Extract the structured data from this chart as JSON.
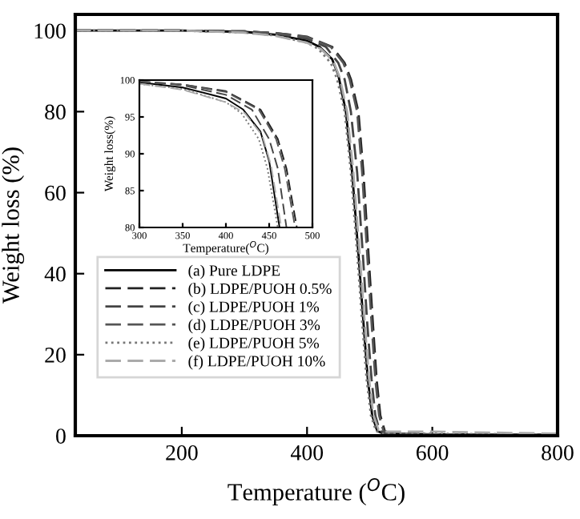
{
  "chart_data": [
    {
      "type": "line",
      "xlabel": "Temperature ($^{O}$C)",
      "ylabel": "Weight loss (%)",
      "xlim": [
        30,
        800
      ],
      "ylim": [
        0,
        104
      ],
      "xticks": [
        200,
        400,
        600,
        800
      ],
      "yticks": [
        0,
        20,
        40,
        60,
        80,
        100
      ],
      "grid": false,
      "legend": "bottom left",
      "series": [
        {
          "name": "(a) Pure LDPE",
          "color": "#000000",
          "line_style": "solid",
          "x": [
            30,
            200,
            300,
            350,
            400,
            420,
            440,
            450,
            462,
            472,
            482,
            490,
            497,
            504,
            512,
            522,
            600,
            800
          ],
          "values": [
            100,
            100,
            99.7,
            99,
            97.5,
            96,
            93,
            89,
            80,
            65,
            45,
            28,
            14,
            5,
            1.2,
            0.5,
            0.3,
            0.2
          ]
        },
        {
          "name": "(b) LDPE/PUOH 0.5%",
          "color": "#222222",
          "line_style": "dashed",
          "x": [
            30,
            200,
            300,
            350,
            400,
            440,
            460,
            470,
            482,
            490,
            498,
            505,
            511,
            517,
            524,
            532,
            600,
            800
          ],
          "values": [
            100,
            100,
            99.8,
            99.4,
            98.5,
            96,
            92,
            88,
            80,
            65,
            45,
            28,
            14,
            5,
            1.2,
            0.5,
            0.3,
            0.2
          ]
        },
        {
          "name": "(c) LDPE/PUOH 1%",
          "color": "#444444",
          "line_style": "dashed",
          "x": [
            30,
            200,
            300,
            350,
            400,
            430,
            450,
            460,
            470,
            480,
            489,
            496,
            503,
            509,
            516,
            526,
            600,
            800
          ],
          "values": [
            100,
            100,
            99.8,
            99.3,
            98,
            96,
            92,
            88,
            80,
            65,
            45,
            28,
            14,
            5,
            1.2,
            0.5,
            0.3,
            0.2
          ]
        },
        {
          "name": "(d) LDPE/PUOH 3%",
          "color": "#555555",
          "line_style": "dashed",
          "x": [
            30,
            200,
            300,
            350,
            400,
            438,
            458,
            468,
            480,
            488,
            496,
            503,
            509,
            515,
            522,
            530,
            600,
            800
          ],
          "values": [
            100,
            100,
            99.8,
            99.4,
            98.4,
            96,
            92,
            88,
            80,
            65,
            45,
            28,
            14,
            5,
            1.2,
            0.5,
            0.3,
            0.2
          ]
        },
        {
          "name": "(e) LDPE/PUOH 5%",
          "color": "#777777",
          "line_style": "dotted",
          "x": [
            30,
            200,
            300,
            350,
            400,
            418,
            438,
            448,
            460,
            470,
            480,
            488,
            495,
            502,
            510,
            520,
            600,
            800
          ],
          "values": [
            100,
            100,
            99.5,
            98.8,
            97,
            95.5,
            92,
            88,
            80,
            65,
            45,
            28,
            14,
            5,
            1.2,
            0.5,
            0.5,
            0.3
          ]
        },
        {
          "name": "(f) LDPE/PUOH 10%",
          "color": "#aaaaaa",
          "line_style": "dashed",
          "x": [
            30,
            200,
            300,
            350,
            400,
            422,
            442,
            452,
            464,
            474,
            484,
            492,
            499,
            506,
            514,
            524,
            600,
            800
          ],
          "values": [
            100,
            100,
            99.5,
            98.7,
            97,
            95.5,
            92.5,
            88.5,
            80,
            65,
            45,
            28,
            14,
            5,
            1.5,
            1,
            1,
            0.5
          ]
        }
      ]
    },
    {
      "type": "line",
      "xlabel": "Temperature($^{O}$C)",
      "ylabel": "Weight loss(%)",
      "xlim": [
        300,
        500
      ],
      "ylim": [
        80,
        100
      ],
      "xticks": [
        300,
        350,
        400,
        450,
        500
      ],
      "yticks": [
        80,
        85,
        90,
        95,
        100
      ],
      "grid": false,
      "series": [
        {
          "color": "#000000",
          "line_style": "solid",
          "x": [
            300,
            350,
            400,
            420,
            440,
            450,
            462
          ],
          "values": [
            99.7,
            99,
            97.5,
            96,
            93,
            89,
            80
          ]
        },
        {
          "color": "#222222",
          "line_style": "dashed",
          "x": [
            300,
            350,
            400,
            440,
            460,
            470,
            482
          ],
          "values": [
            99.8,
            99.4,
            98.5,
            96,
            92,
            88,
            80
          ]
        },
        {
          "color": "#444444",
          "line_style": "dashed",
          "x": [
            300,
            350,
            400,
            430,
            450,
            460,
            470
          ],
          "values": [
            99.8,
            99.3,
            98,
            96,
            92,
            88,
            80
          ]
        },
        {
          "color": "#555555",
          "line_style": "dashed",
          "x": [
            300,
            350,
            400,
            438,
            458,
            468,
            480
          ],
          "values": [
            99.8,
            99.4,
            98.4,
            96,
            92,
            88,
            80
          ]
        },
        {
          "color": "#777777",
          "line_style": "dotted",
          "x": [
            300,
            350,
            400,
            418,
            438,
            448,
            460
          ],
          "values": [
            99.5,
            98.8,
            97,
            95.5,
            92,
            88,
            80
          ]
        },
        {
          "color": "#aaaaaa",
          "line_style": "dashed",
          "x": [
            300,
            350,
            400,
            422,
            442,
            452,
            464
          ],
          "values": [
            99.5,
            98.7,
            97,
            95.5,
            92.5,
            88.5,
            80
          ]
        }
      ]
    }
  ]
}
